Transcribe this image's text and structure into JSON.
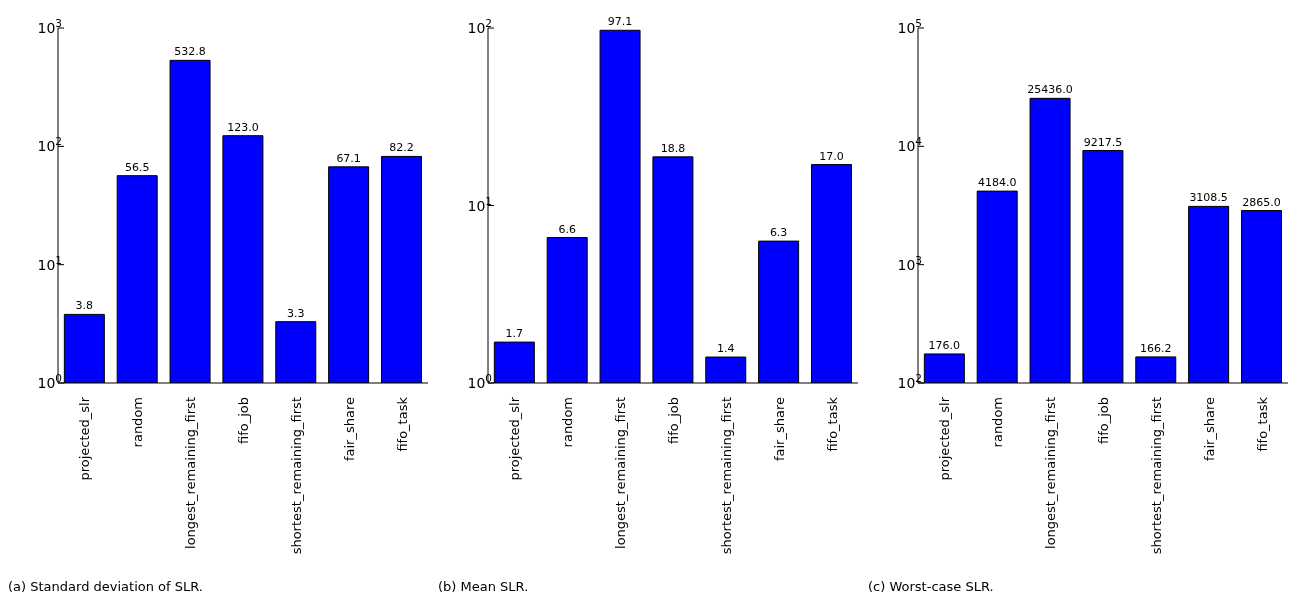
{
  "chart_data": [
    {
      "type": "bar",
      "title": "(a) Standard deviation of SLR.",
      "categories": [
        "projected_slr",
        "random",
        "longest_remaining_first",
        "fifo_job",
        "shortest_remaining_first",
        "fair_share",
        "fifo_task"
      ],
      "values": [
        3.8,
        56.5,
        532.8,
        123.0,
        3.3,
        67.1,
        82.2
      ],
      "value_labels": [
        "3.8",
        "56.5",
        "532.8",
        "123.0",
        "3.3",
        "67.1",
        "82.2"
      ],
      "color": "#0000ff",
      "log": true,
      "ylim": [
        1,
        1000
      ],
      "yticks": [
        {
          "value": 1,
          "label": "10$^{0}$"
        },
        {
          "value": 10,
          "label": "10$^{1}$"
        },
        {
          "value": 100,
          "label": "10$^{2}$"
        },
        {
          "value": 1000,
          "label": "10$^{3}$"
        }
      ],
      "grid": false,
      "legend": false
    },
    {
      "type": "bar",
      "title": "(b) Mean SLR.",
      "categories": [
        "projected_slr",
        "random",
        "longest_remaining_first",
        "fifo_job",
        "shortest_remaining_first",
        "fair_share",
        "fifo_task"
      ],
      "values": [
        1.7,
        6.6,
        97.1,
        18.8,
        1.4,
        6.3,
        17.0
      ],
      "value_labels": [
        "1.7",
        "6.6",
        "97.1",
        "18.8",
        "1.4",
        "6.3",
        "17.0"
      ],
      "color": "#0000ff",
      "log": true,
      "ylim": [
        1,
        100
      ],
      "yticks": [
        {
          "value": 1,
          "label": "10$^{0}$"
        },
        {
          "value": 10,
          "label": "10$^{1}$"
        },
        {
          "value": 100,
          "label": "10$^{2}$"
        }
      ],
      "grid": false,
      "legend": false
    },
    {
      "type": "bar",
      "title": "(c) Worst-case SLR.",
      "categories": [
        "projected_slr",
        "random",
        "longest_remaining_first",
        "fifo_job",
        "shortest_remaining_first",
        "fair_share",
        "fifo_task"
      ],
      "values": [
        176.0,
        4184.0,
        25436.0,
        9217.5,
        166.2,
        3108.5,
        2865.0
      ],
      "value_labels": [
        "176.0",
        "4184.0",
        "25436.0",
        "9217.5",
        "166.2",
        "3108.5",
        "2865.0"
      ],
      "color": "#0000ff",
      "log": true,
      "ylim": [
        100,
        100000
      ],
      "yticks": [
        {
          "value": 100,
          "label": "10$^{2}$"
        },
        {
          "value": 1000,
          "label": "10$^{3}$"
        },
        {
          "value": 10000,
          "label": "10$^{4}$"
        },
        {
          "value": 100000,
          "label": "10$^{5}$"
        }
      ],
      "grid": false,
      "legend": false
    }
  ]
}
